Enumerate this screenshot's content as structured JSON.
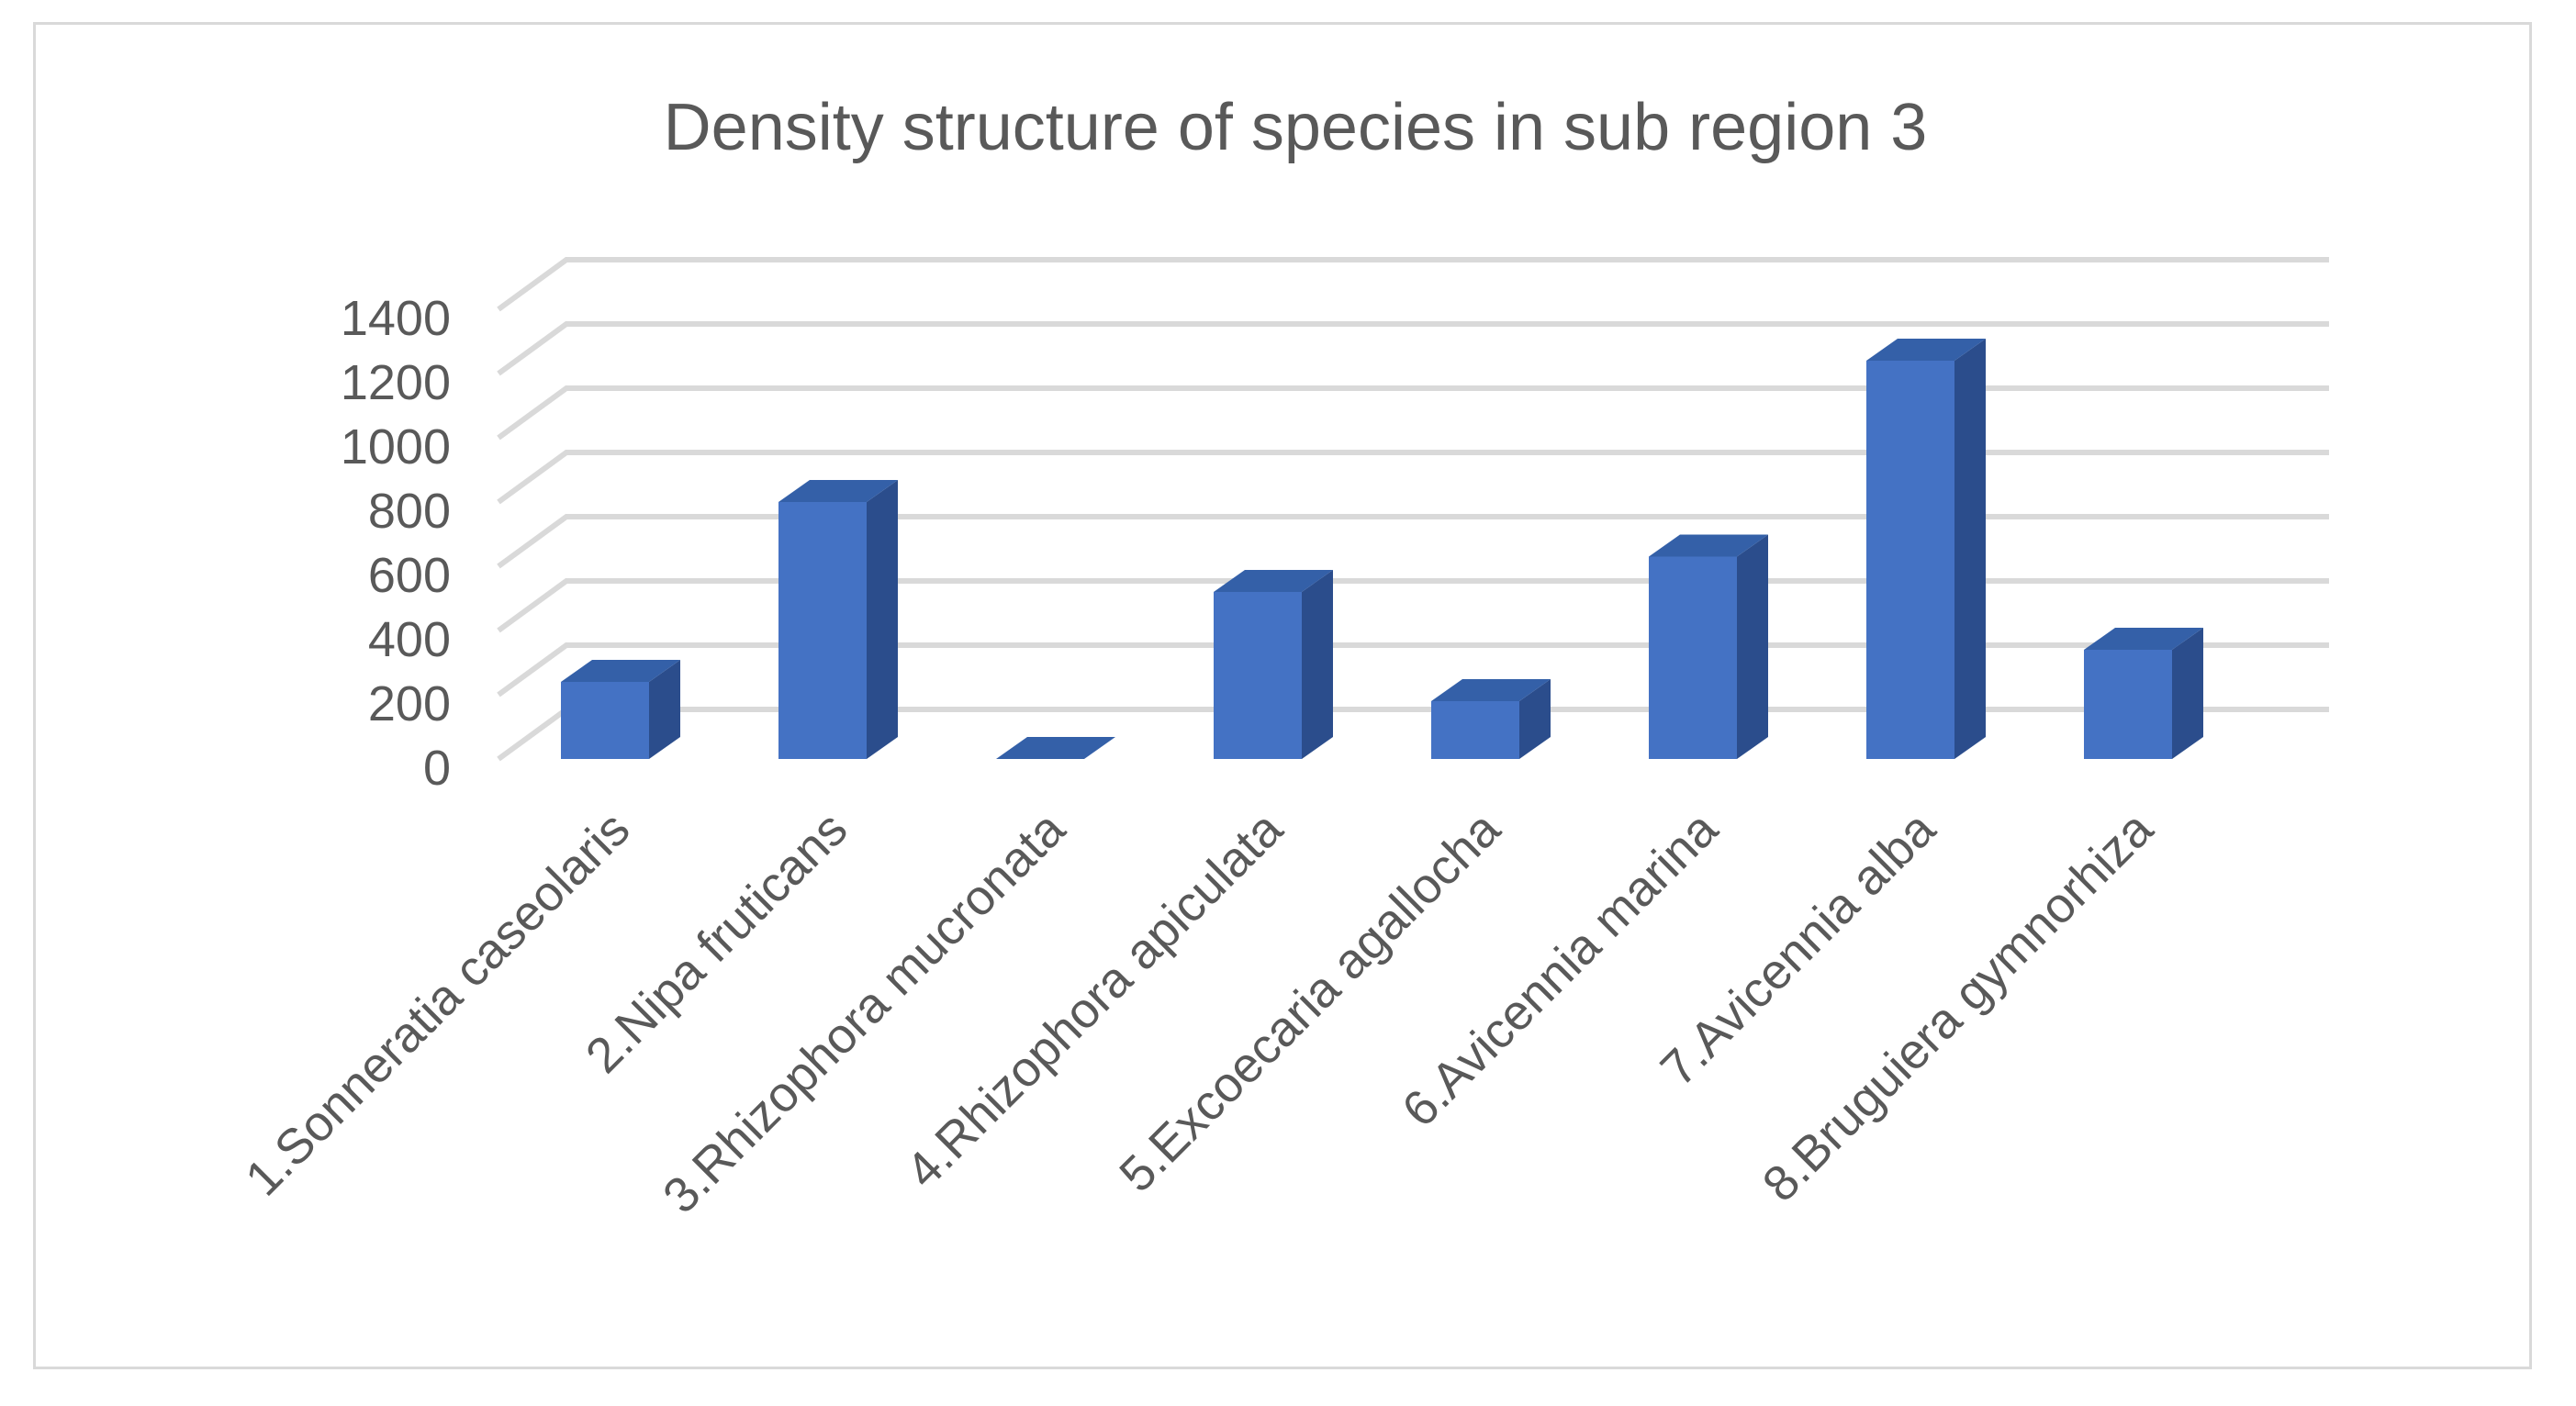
{
  "chart_data": {
    "type": "bar",
    "style": "3d-column",
    "title": "Density structure of species in sub region 3",
    "xlabel": "",
    "ylabel": "",
    "ylim": [
      0,
      1400
    ],
    "yticks": [
      0,
      200,
      400,
      600,
      800,
      1000,
      1200,
      1400
    ],
    "grid": true,
    "legend": "none",
    "categories": [
      "1.Sonneratia caseolaris",
      "2.Nipa fruticans",
      "3.Rhizophora mucronata",
      "4.Rhizophora apiculata",
      "5.Excoecaria agallocha",
      "6.Avicennia marina",
      "7.Avicennia alba",
      "8.Bruguiera gymnorhiza"
    ],
    "values": [
      240,
      800,
      0,
      520,
      180,
      630,
      1240,
      340
    ],
    "colors": {
      "front": "#4472c4",
      "side": "#2b4d8c",
      "top": "#3460a8",
      "grid": "#d9d9d9",
      "text": "#595959"
    }
  }
}
